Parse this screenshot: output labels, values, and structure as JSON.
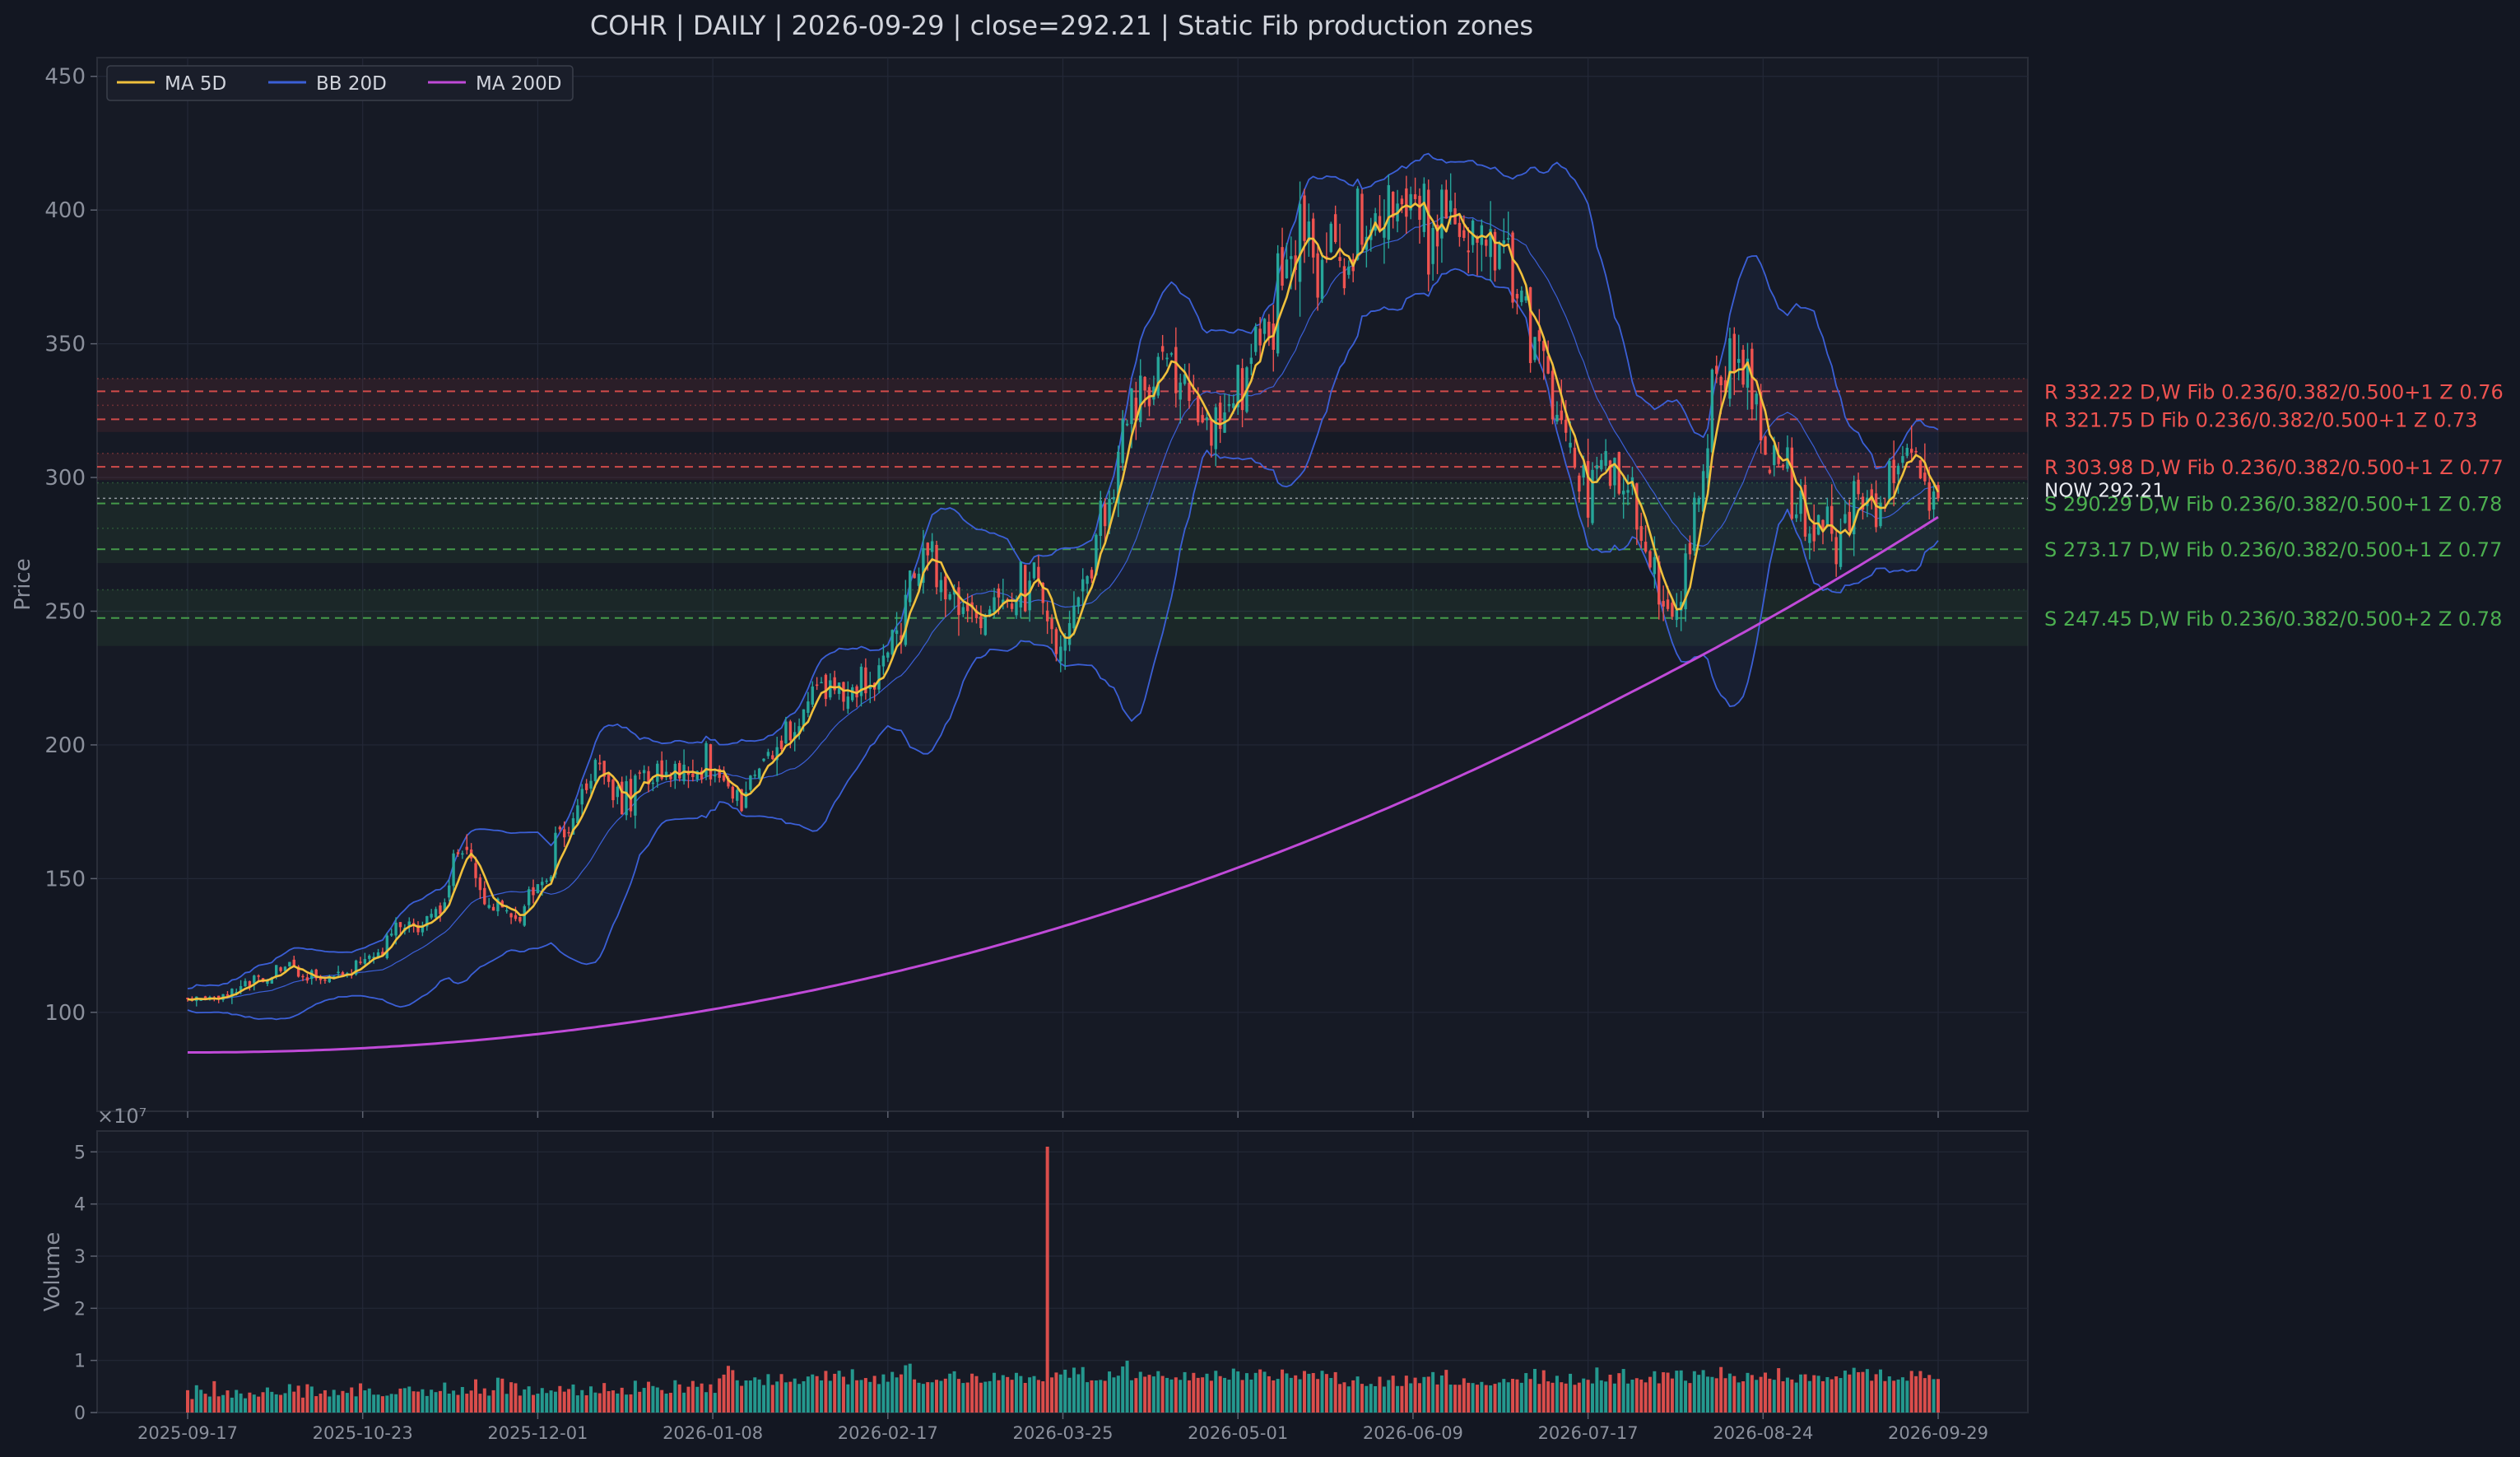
{
  "chart_data": {
    "type": "candlestick",
    "title": "COHR  |  DAILY  |  2026-09-29  |  close=292.21  |  Static Fib production zones",
    "ticker": "COHR",
    "interval": "DAILY",
    "last_date": "2026-09-29",
    "close": 292.21,
    "price_ylabel": "Price",
    "volume_ylabel": "Volume",
    "volume_exponent_label": "×10⁷",
    "price_ylim": [
      63,
      457
    ],
    "volume_ylim": [
      0,
      5.4
    ],
    "price_yticks": [
      100,
      150,
      200,
      250,
      300,
      350,
      400,
      450
    ],
    "volume_yticks": [
      0,
      1,
      2,
      3,
      4,
      5
    ],
    "x_tick_labels": [
      "2025-09-17",
      "2025-10-23",
      "2025-12-01",
      "2026-01-08",
      "2026-02-17",
      "2026-03-25",
      "2026-05-01",
      "2026-06-09",
      "2026-07-17",
      "2026-08-24",
      "2026-09-29"
    ],
    "legend": {
      "placement": "top-left",
      "entries": [
        {
          "label": "MA 5D",
          "color": "#f0c03c"
        },
        {
          "label": "BB 20D",
          "color": "#3b5fd6"
        },
        {
          "label": "MA 200D",
          "color": "#c04ad8"
        }
      ]
    },
    "colors": {
      "up": "#26a69a",
      "down": "#ef5350",
      "resistance": "#ef5350",
      "support": "#4caf50",
      "background": "#131722",
      "panel": "#161a25",
      "grid": "#232837"
    },
    "zones": [
      {
        "kind": "R",
        "price": 332.22,
        "text": "R 332.22  D,W  Fib 0.236/0.382/0.500+1  Z 0.76",
        "band": [
          327,
          337
        ]
      },
      {
        "kind": "R",
        "price": 321.75,
        "text": "R 321.75  D  Fib 0.236/0.382/0.500+1  Z 0.73",
        "band": [
          317,
          327
        ]
      },
      {
        "kind": "R",
        "price": 303.98,
        "text": "R 303.98  D,W  Fib 0.236/0.382/0.500+1  Z 0.77",
        "band": [
          299,
          309
        ]
      },
      {
        "kind": "S",
        "price": 290.29,
        "text": "S 290.29  D,W  Fib 0.236/0.382/0.500+1  Z 0.78",
        "band": [
          281,
          298
        ]
      },
      {
        "kind": "S",
        "price": 273.17,
        "text": "S 273.17  D,W  Fib 0.236/0.382/0.500+1  Z 0.77",
        "band": [
          268,
          281
        ]
      },
      {
        "kind": "S",
        "price": 247.45,
        "text": "S 247.45  D,W  Fib 0.236/0.382/0.500+2  Z 0.78",
        "band": [
          237,
          258
        ]
      }
    ],
    "now_label": "NOW 292.21",
    "now_price": 292.21,
    "price_path_keypoints": [
      [
        0,
        104
      ],
      [
        12,
        110
      ],
      [
        22,
        116
      ],
      [
        32,
        113
      ],
      [
        42,
        120
      ],
      [
        48,
        132
      ],
      [
        55,
        135
      ],
      [
        62,
        162
      ],
      [
        68,
        140
      ],
      [
        74,
        137
      ],
      [
        80,
        150
      ],
      [
        86,
        170
      ],
      [
        92,
        192
      ],
      [
        98,
        180
      ],
      [
        104,
        190
      ],
      [
        110,
        188
      ],
      [
        118,
        192
      ],
      [
        124,
        180
      ],
      [
        130,
        195
      ],
      [
        136,
        205
      ],
      [
        142,
        220
      ],
      [
        148,
        226
      ],
      [
        154,
        222
      ],
      [
        160,
        245
      ],
      [
        166,
        272
      ],
      [
        172,
        260
      ],
      [
        178,
        246
      ],
      [
        184,
        252
      ],
      [
        190,
        262
      ],
      [
        196,
        238
      ],
      [
        202,
        258
      ],
      [
        208,
        298
      ],
      [
        214,
        328
      ],
      [
        220,
        345
      ],
      [
        226,
        330
      ],
      [
        232,
        318
      ],
      [
        238,
        335
      ],
      [
        244,
        358
      ],
      [
        250,
        390
      ],
      [
        256,
        378
      ],
      [
        262,
        385
      ],
      [
        268,
        398
      ],
      [
        274,
        402
      ],
      [
        280,
        392
      ],
      [
        286,
        395
      ],
      [
        292,
        392
      ],
      [
        298,
        380
      ],
      [
        304,
        345
      ],
      [
        310,
        318
      ],
      [
        316,
        300
      ],
      [
        322,
        305
      ],
      [
        328,
        280
      ],
      [
        332,
        262
      ],
      [
        336,
        255
      ],
      [
        340,
        280
      ],
      [
        344,
        330
      ],
      [
        348,
        348
      ],
      [
        352,
        338
      ],
      [
        356,
        310
      ],
      [
        360,
        300
      ],
      [
        364,
        288
      ],
      [
        368,
        278
      ],
      [
        372,
        282
      ],
      [
        376,
        295
      ],
      [
        380,
        290
      ],
      [
        384,
        300
      ],
      [
        388,
        310
      ],
      [
        392,
        296
      ],
      [
        395,
        292.21
      ]
    ],
    "volume_spike": {
      "index": 194,
      "value": 5.1
    }
  }
}
